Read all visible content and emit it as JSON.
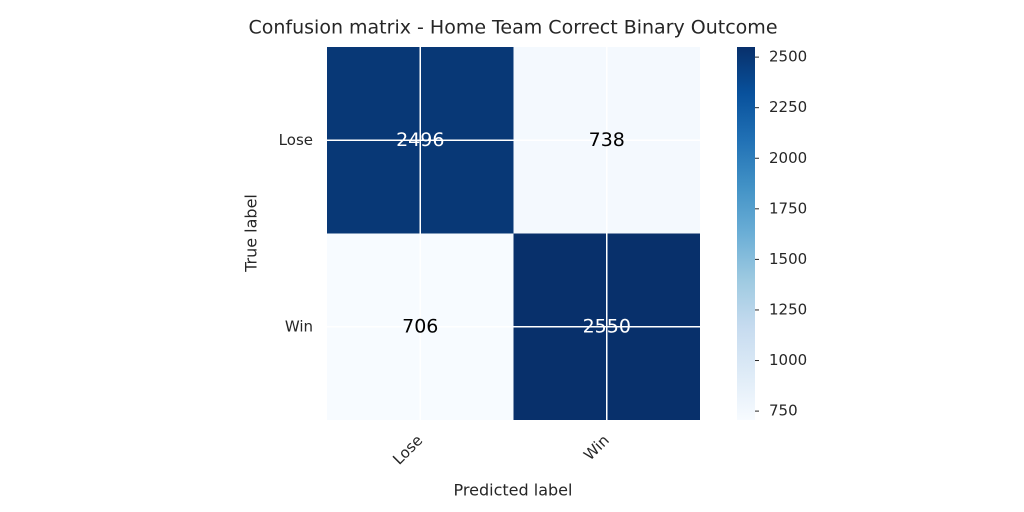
{
  "chart_data": {
    "type": "heatmap",
    "title": "Confusion matrix - Home Team Correct Binary Outcome",
    "x_label": "Predicted label",
    "y_label": "True label",
    "x_categories": [
      "Lose",
      "Win"
    ],
    "y_categories": [
      "Lose",
      "Win"
    ],
    "values": [
      [
        2496,
        738
      ],
      [
        706,
        2550
      ]
    ],
    "clim": [
      706,
      2550
    ],
    "cticks": [
      750,
      1000,
      1250,
      1500,
      1750,
      2000,
      2250,
      2500
    ],
    "colormap": [
      "#f7fbff",
      "#deebf7",
      "#c6dbef",
      "#9ecae1",
      "#6baed6",
      "#4292c6",
      "#2171b5",
      "#08519c",
      "#08306b"
    ],
    "grid": true
  }
}
